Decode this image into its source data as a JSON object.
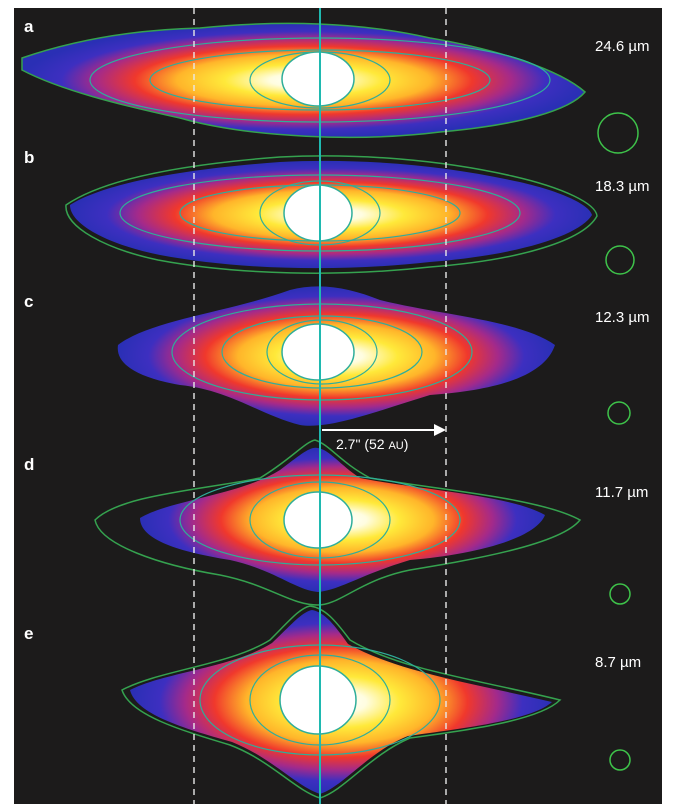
{
  "panels": [
    {
      "label": "a",
      "wavelength": "24.6 µm"
    },
    {
      "label": "b",
      "wavelength": "18.3 µm"
    },
    {
      "label": "c",
      "wavelength": "12.3 µm"
    },
    {
      "label": "d",
      "wavelength": "11.7 µm"
    },
    {
      "label": "e",
      "wavelength": "8.7 µm"
    }
  ],
  "scale_bar": {
    "label": "2.7\" (52 ",
    "unit": "AU",
    "close": ")"
  },
  "colors": {
    "background": "#1c1b1b",
    "contour": "#2fae9a",
    "contour_outer": "#35a24f",
    "axis_line": "#1fb9b0",
    "beam_circle": "#3ec34a",
    "guide_line": "#e8e8e8"
  }
}
